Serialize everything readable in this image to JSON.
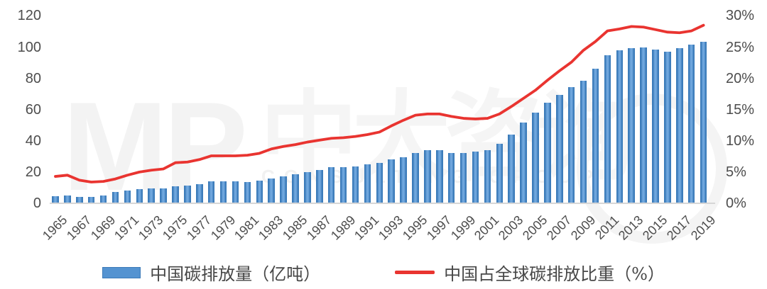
{
  "chart_data": {
    "type": "combo",
    "title": "",
    "x": [
      1965,
      1966,
      1967,
      1968,
      1969,
      1970,
      1971,
      1972,
      1973,
      1974,
      1975,
      1976,
      1977,
      1978,
      1979,
      1980,
      1981,
      1982,
      1983,
      1984,
      1985,
      1986,
      1987,
      1988,
      1989,
      1990,
      1991,
      1992,
      1993,
      1994,
      1995,
      1996,
      1997,
      1998,
      1999,
      2000,
      2001,
      2002,
      2003,
      2004,
      2005,
      2006,
      2007,
      2008,
      2009,
      2010,
      2011,
      2012,
      2013,
      2014,
      2015,
      2016,
      2017,
      2018,
      2019
    ],
    "series": [
      {
        "name": "中国碳排放量（亿吨）",
        "type": "bar",
        "axis": "left",
        "color": "#4e8fce",
        "values": [
          4.7,
          5.2,
          4.0,
          4.1,
          5.1,
          7.2,
          8.3,
          8.9,
          9.4,
          9.3,
          11.1,
          11.4,
          12.4,
          13.9,
          14.2,
          13.9,
          13.6,
          14.7,
          15.8,
          17.2,
          18.5,
          19.8,
          21.5,
          23.0,
          23.3,
          23.8,
          25.0,
          26.0,
          27.9,
          29.5,
          32.3,
          33.8,
          33.8,
          32.3,
          32.0,
          33.3,
          33.9,
          37.9,
          44.0,
          51.8,
          57.9,
          64.4,
          69.2,
          74.5,
          78.3,
          86.2,
          95.0,
          98.0,
          99.2,
          100.0,
          98.3,
          96.9,
          99.1,
          101.4,
          103.6
        ]
      },
      {
        "name": "中国占全球碳排放比重（%）",
        "type": "line",
        "axis": "right",
        "color": "#e93430",
        "values": [
          4.3,
          4.5,
          3.7,
          3.4,
          3.5,
          3.9,
          4.5,
          5.0,
          5.3,
          5.5,
          6.5,
          6.6,
          7.0,
          7.6,
          7.6,
          7.6,
          7.7,
          8.0,
          8.7,
          9.1,
          9.4,
          9.8,
          10.1,
          10.4,
          10.5,
          10.7,
          11.0,
          11.4,
          12.4,
          13.3,
          14.1,
          14.3,
          14.3,
          13.9,
          13.6,
          13.5,
          13.6,
          14.3,
          15.5,
          16.8,
          18.1,
          19.7,
          21.2,
          22.6,
          24.5,
          25.9,
          27.6,
          27.9,
          28.3,
          28.2,
          27.8,
          27.4,
          27.3,
          27.6,
          28.5
        ]
      }
    ],
    "left_axis": {
      "min": 0,
      "max": 120,
      "step": 20,
      "ticks": [
        "0",
        "20",
        "40",
        "60",
        "80",
        "100",
        "120"
      ]
    },
    "right_axis": {
      "min": 0,
      "max": 30,
      "step": 5,
      "ticks": [
        "0%",
        "5%",
        "10%",
        "15%",
        "20%",
        "25%",
        "30%"
      ]
    },
    "x_tick_labels": [
      "1965",
      "1967",
      "1969",
      "1971",
      "1973",
      "1975",
      "1977",
      "1979",
      "1981",
      "1983",
      "1985",
      "1987",
      "1989",
      "1991",
      "1993",
      "1995",
      "1997",
      "1999",
      "2001",
      "2003",
      "2005",
      "2007",
      "2009",
      "2011",
      "2013",
      "2015",
      "2017",
      "2019"
    ],
    "grid": false,
    "legend_position": "bottom"
  },
  "legend": {
    "items": [
      {
        "label": "中国碳排放量（亿吨）",
        "swatch": "bar",
        "color": "#5493d1"
      },
      {
        "label": "中国占全球碳排放比重（%）",
        "swatch": "line",
        "color": "#e93430"
      }
    ]
  },
  "watermark": {
    "mp": "MP",
    "cn": "中大咨询",
    "en": "CONSULTING GROUP"
  },
  "colors": {
    "bar_fill": "#4e8fce",
    "bar_edge": "#3c7cba",
    "bar_highlight": "#74aadf",
    "line_red": "#e93430",
    "axis_line": "#d6d6d6",
    "tick_text": "#4d4d4d",
    "watermark": "#f3f3f3"
  }
}
